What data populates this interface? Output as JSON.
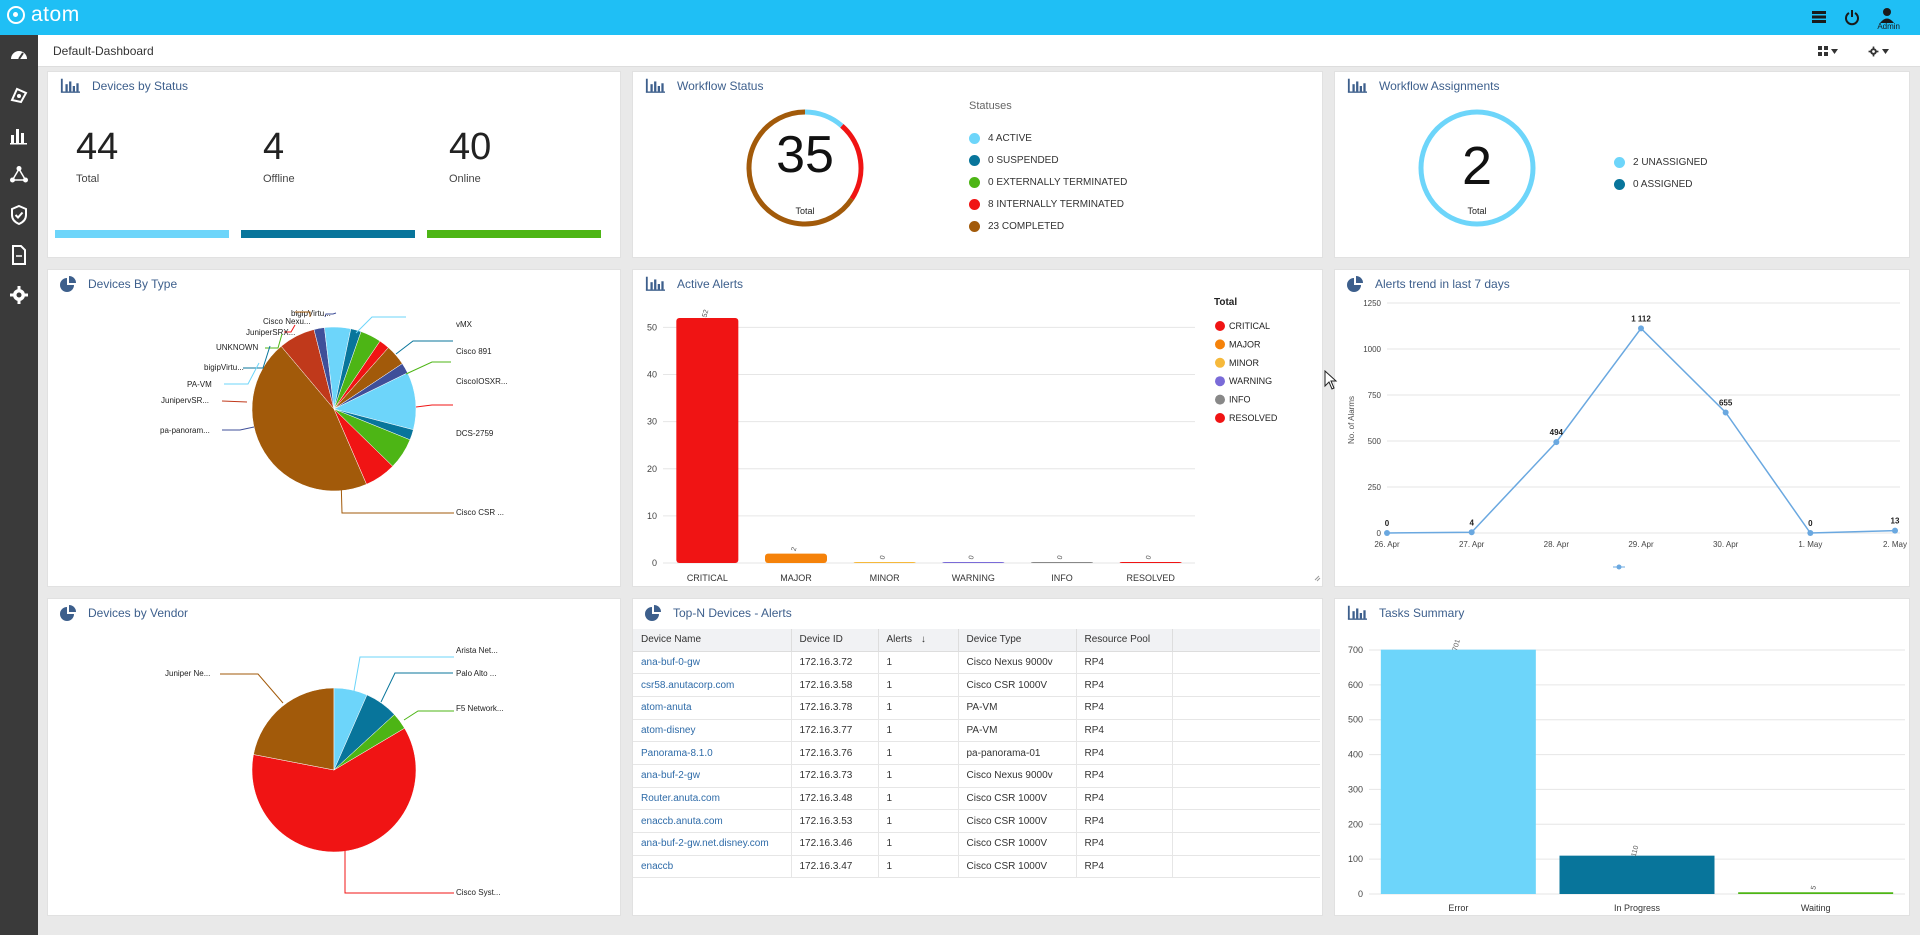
{
  "app": {
    "name": "atom",
    "admin_label": "Admin"
  },
  "icons": {
    "logo": "atom-logo-icon",
    "top_right": [
      "menu-list-icon",
      "power-icon",
      "user-icon"
    ],
    "sidebar": [
      "dashboard-gauge-icon",
      "devices-icon",
      "charts-icon",
      "network-topology-icon",
      "shield-icon",
      "document-icon",
      "settings-gear-icon"
    ],
    "subbar": [
      "layout-grid-icon",
      "settings-gear-icon"
    ]
  },
  "subbar": {
    "title": "Default-Dashboard"
  },
  "panels": {
    "devices_by_status": {
      "title": "Devices by Status",
      "stats": [
        {
          "value": "44",
          "label": "Total",
          "color": "#6dd5fa"
        },
        {
          "value": "4",
          "label": "Offline",
          "color": "#08759b"
        },
        {
          "value": "40",
          "label": "Online",
          "color": "#4db515"
        }
      ]
    },
    "workflow_status": {
      "title": "Workflow Status",
      "total": "35",
      "total_label": "Total",
      "legend_title": "Statuses",
      "items": [
        {
          "label": "4 ACTIVE",
          "count": 4,
          "color": "#6dd5fa"
        },
        {
          "label": "0 SUSPENDED",
          "count": 0,
          "color": "#08759b"
        },
        {
          "label": "0 EXTERNALLY TERMINATED",
          "count": 0,
          "color": "#4db515"
        },
        {
          "label": "8 INTERNALLY TERMINATED",
          "count": 8,
          "color": "#f01414"
        },
        {
          "label": "23 COMPLETED",
          "count": 23,
          "color": "#a25a0a"
        }
      ]
    },
    "workflow_assignments": {
      "title": "Workflow Assignments",
      "total": "2",
      "total_label": "Total",
      "items": [
        {
          "label": "2 UNASSIGNED",
          "count": 2,
          "color": "#6dd5fa"
        },
        {
          "label": "0 ASSIGNED",
          "count": 0,
          "color": "#08759b"
        }
      ]
    },
    "devices_by_type": {
      "title": "Devices By Type",
      "labels": [
        "bigipVirtu...",
        "Cisco Nexu...",
        "JuniperSRX...",
        "UNKNOWN",
        "bigipVirtu...",
        "PA-VM",
        "JunipervSR...",
        "pa-panoram...",
        "vMX",
        "Cisco 891",
        "CiscoIOSXR...",
        "DCS-2759",
        "Cisco CSR ..."
      ]
    },
    "active_alerts": {
      "title": "Active Alerts"
    },
    "alerts_trend": {
      "title": "Alerts trend in last 7 days"
    },
    "devices_by_vendor": {
      "title": "Devices by Vendor",
      "labels": [
        "Arista Net...",
        "Palo Alto ...",
        "F5 Network...",
        "Juniper Ne...",
        "Cisco Syst..."
      ]
    },
    "top_n": {
      "title": "Top-N Devices - Alerts",
      "columns": [
        "Device Name",
        "Device ID",
        "Alerts",
        "Device Type",
        "Resource Pool"
      ],
      "rows": [
        [
          "ana-buf-0-gw",
          "172.16.3.72",
          "1",
          "Cisco Nexus 9000v",
          "RP4"
        ],
        [
          "csr58.anutacorp.com",
          "172.16.3.58",
          "1",
          "Cisco CSR 1000V",
          "RP4"
        ],
        [
          "atom-anuta",
          "172.16.3.78",
          "1",
          "PA-VM",
          "RP4"
        ],
        [
          "atom-disney",
          "172.16.3.77",
          "1",
          "PA-VM",
          "RP4"
        ],
        [
          "Panorama-8.1.0",
          "172.16.3.76",
          "1",
          "pa-panorama-01",
          "RP4"
        ],
        [
          "ana-buf-2-gw",
          "172.16.3.73",
          "1",
          "Cisco Nexus 9000v",
          "RP4"
        ],
        [
          "Router.anuta.com",
          "172.16.3.48",
          "1",
          "Cisco CSR 1000V",
          "RP4"
        ],
        [
          "enaccb.anuta.com",
          "172.16.3.53",
          "1",
          "Cisco CSR 1000V",
          "RP4"
        ],
        [
          "ana-buf-2-gw.net.disney.com",
          "172.16.3.46",
          "1",
          "Cisco CSR 1000V",
          "RP4"
        ],
        [
          "enaccb",
          "172.16.3.47",
          "1",
          "Cisco CSR 1000V",
          "RP4"
        ]
      ]
    },
    "tasks_summary": {
      "title": "Tasks Summary"
    }
  },
  "chart_data": [
    {
      "type": "pie",
      "id": "devices_by_type",
      "labels": [
        "Cisco CSR ...",
        "JunipervSR...",
        "pa-panoram...",
        "PA-VM",
        "bigipVirtu...",
        "UNKNOWN",
        "JuniperSRX...",
        "Cisco Nexu...",
        "bigipVirtu...",
        "vMX",
        "Cisco 891",
        "CiscoIOSXR...",
        "DCS-2759"
      ],
      "values": [
        22,
        3.5,
        1,
        2.5,
        1,
        2,
        1,
        2,
        1,
        5.5,
        1,
        3,
        3
      ],
      "colors": [
        "#a25a0a",
        "#c0391b",
        "#3f4f99",
        "#6dd5fa",
        "#08759b",
        "#4db515",
        "#f01414",
        "#a25a0a",
        "#3f4f99",
        "#6dd5fa",
        "#08759b",
        "#4db515",
        "#f01414"
      ]
    },
    {
      "type": "bar",
      "id": "active_alerts",
      "categories": [
        "CRITICAL",
        "MAJOR",
        "MINOR",
        "WARNING",
        "INFO",
        "RESOLVED"
      ],
      "values": [
        52,
        2,
        0,
        0,
        0,
        0
      ],
      "colors": [
        "#f01414",
        "#f5820a",
        "#f6b93b",
        "#7a6bd8",
        "#888888",
        "#f01414"
      ],
      "legend_title": "Total",
      "yticks": [
        0,
        10,
        20,
        30,
        40,
        50
      ],
      "ylim": [
        0,
        52
      ]
    },
    {
      "type": "line",
      "id": "alerts_trend",
      "x": [
        "26. Apr",
        "27. Apr",
        "28. Apr",
        "29. Apr",
        "30. Apr",
        "1. May",
        "2. May"
      ],
      "values": [
        0,
        4,
        494,
        1112,
        655,
        0,
        13
      ],
      "data_labels": [
        "0",
        "4",
        "494",
        "1 112",
        "655",
        "0",
        "13"
      ],
      "ylabel": "No. of Alarms",
      "yticks": [
        "0",
        "250",
        "500",
        "750",
        "1000",
        "1250"
      ],
      "ylim": [
        0,
        1250
      ],
      "color": "#6aa8e0"
    },
    {
      "type": "pie",
      "id": "devices_by_vendor",
      "labels": [
        "Cisco Syst...",
        "Juniper Ne...",
        "Arista Net...",
        "Palo Alto ...",
        "F5 Network..."
      ],
      "values": [
        28,
        10,
        3,
        3,
        1.5
      ],
      "colors": [
        "#f01414",
        "#a25a0a",
        "#6dd5fa",
        "#08759b",
        "#4db515"
      ]
    },
    {
      "type": "bar",
      "id": "tasks_summary",
      "categories": [
        "Error",
        "In Progress",
        "Waiting"
      ],
      "values": [
        701,
        110,
        5
      ],
      "colors": [
        "#6dd5fa",
        "#08759b",
        "#4db515"
      ],
      "yticks": [
        0,
        100,
        200,
        300,
        400,
        500,
        600,
        700
      ],
      "ylim": [
        0,
        700
      ]
    }
  ]
}
